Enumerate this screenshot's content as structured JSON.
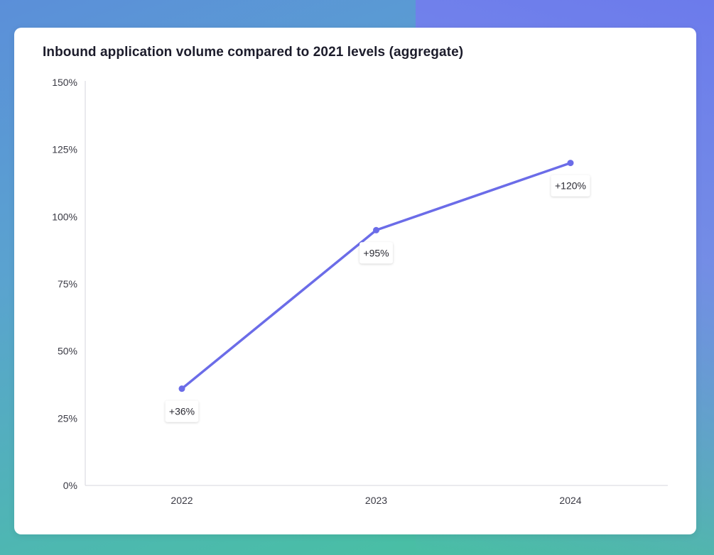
{
  "chart_data": {
    "type": "line",
    "title": "Inbound application volume compared to 2021 levels (aggregate)",
    "categories": [
      "2022",
      "2023",
      "2024"
    ],
    "series": [
      {
        "values": [
          36,
          95,
          120
        ],
        "labels": [
          "+36%",
          "+95%",
          "+120%"
        ]
      }
    ],
    "yticks": [
      0,
      25,
      50,
      75,
      100,
      125,
      150
    ],
    "ytick_labels": [
      "0%",
      "25%",
      "50%",
      "75%",
      "100%",
      "125%",
      "150%"
    ],
    "ylim": [
      0,
      150
    ],
    "grid": false,
    "line_color": "#6b6ce8"
  }
}
